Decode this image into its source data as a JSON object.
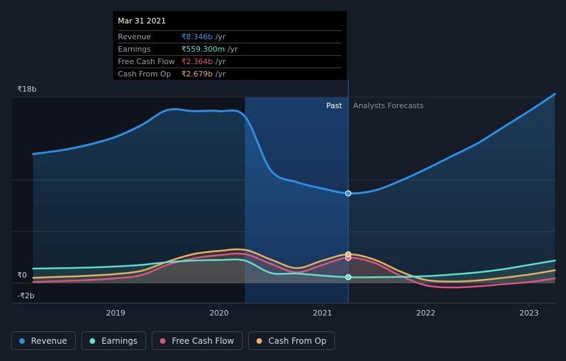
{
  "tooltip": {
    "date": "Mar 31 2021",
    "rows": [
      {
        "label": "Revenue",
        "value": "₹8.346b",
        "unit": "/yr",
        "color": "#3a9be6"
      },
      {
        "label": "Earnings",
        "value": "₹559.300m",
        "unit": "/yr",
        "color": "#5fe0cf"
      },
      {
        "label": "Free Cash Flow",
        "value": "₹2.364b",
        "unit": "/yr",
        "color": "#d9577f"
      },
      {
        "label": "Cash From Op",
        "value": "₹2.679b",
        "unit": "/yr",
        "color": "#e9b062"
      }
    ]
  },
  "regions": {
    "past": "Past",
    "forecast": "Analysts Forecasts"
  },
  "legend": [
    {
      "label": "Revenue",
      "color": "#2e8fe0"
    },
    {
      "label": "Earnings",
      "color": "#5fe0cf"
    },
    {
      "label": "Free Cash Flow",
      "color": "#d9577f"
    },
    {
      "label": "Cash From Op",
      "color": "#e9b062"
    }
  ],
  "chart_data": {
    "type": "line",
    "y_labels": [
      "₹18b",
      "₹0",
      "-₹2b"
    ],
    "ylim": [
      -2,
      18
    ],
    "xlim": [
      2018.2,
      2023.25
    ],
    "x_ticks": [
      2019,
      2020,
      2021,
      2022,
      2023
    ],
    "x_tick_labels": [
      "2019",
      "2020",
      "2021",
      "2022",
      "2023"
    ],
    "past_start": 2020.25,
    "forecast_start": 2021.25,
    "series": [
      {
        "name": "Revenue",
        "color": "#2e8fe0",
        "fill": true,
        "x": [
          2018.2,
          2018.5,
          2018.75,
          2019.0,
          2019.25,
          2019.5,
          2019.75,
          2020.0,
          2020.25,
          2020.5,
          2020.75,
          2021.0,
          2021.25,
          2021.5,
          2021.75,
          2022.0,
          2022.25,
          2022.5,
          2022.75,
          2023.0,
          2023.25
        ],
        "values": [
          12.0,
          12.4,
          12.9,
          13.6,
          14.7,
          16.1,
          16.0,
          16.0,
          15.5,
          10.5,
          9.4,
          8.8,
          8.35,
          8.6,
          9.5,
          10.6,
          11.8,
          13.0,
          14.5,
          16.0,
          17.6
        ]
      },
      {
        "name": "Earnings",
        "color": "#5fe0cf",
        "fill": false,
        "x": [
          2018.2,
          2018.5,
          2018.75,
          2019.0,
          2019.25,
          2019.5,
          2019.75,
          2020.0,
          2020.25,
          2020.5,
          2020.75,
          2021.0,
          2021.25,
          2021.5,
          2021.75,
          2022.0,
          2022.25,
          2022.5,
          2022.75,
          2023.0,
          2023.25
        ],
        "values": [
          1.35,
          1.4,
          1.45,
          1.55,
          1.7,
          1.95,
          2.1,
          2.15,
          2.1,
          0.95,
          0.9,
          0.7,
          0.56,
          0.55,
          0.58,
          0.65,
          0.8,
          1.0,
          1.3,
          1.7,
          2.1
        ]
      },
      {
        "name": "Free Cash Flow",
        "color": "#d9577f",
        "fill": false,
        "x": [
          2018.2,
          2018.5,
          2018.75,
          2019.0,
          2019.25,
          2019.5,
          2019.75,
          2020.0,
          2020.25,
          2020.5,
          2020.75,
          2021.0,
          2021.25,
          2021.5,
          2021.75,
          2022.0,
          2022.25,
          2022.5,
          2022.75,
          2023.0,
          2023.25
        ],
        "values": [
          0.1,
          0.2,
          0.3,
          0.45,
          0.75,
          1.7,
          2.3,
          2.6,
          2.7,
          1.8,
          1.0,
          1.7,
          2.36,
          1.9,
          0.7,
          -0.2,
          -0.4,
          -0.3,
          -0.1,
          0.1,
          0.45
        ]
      },
      {
        "name": "Cash From Op",
        "color": "#e9b062",
        "fill": false,
        "x": [
          2018.2,
          2018.5,
          2018.75,
          2019.0,
          2019.25,
          2019.5,
          2019.75,
          2020.0,
          2020.25,
          2020.5,
          2020.75,
          2021.0,
          2021.25,
          2021.5,
          2021.75,
          2022.0,
          2022.25,
          2022.5,
          2022.75,
          2023.0,
          2023.25
        ],
        "values": [
          0.5,
          0.6,
          0.7,
          0.85,
          1.15,
          2.0,
          2.7,
          3.0,
          3.1,
          2.2,
          1.4,
          2.1,
          2.68,
          2.2,
          1.1,
          0.3,
          0.15,
          0.25,
          0.5,
          0.8,
          1.2
        ]
      }
    ],
    "marker_x": 2021.25
  }
}
